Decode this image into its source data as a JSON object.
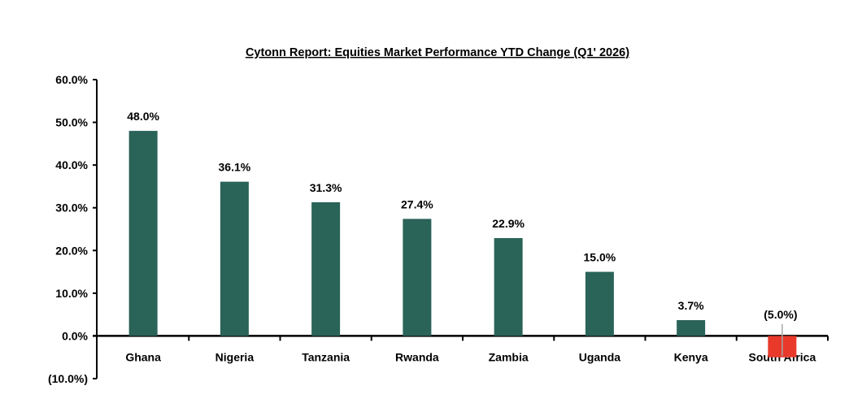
{
  "chart_data": {
    "type": "bar",
    "title": "Cytonn Report: Equities Market Performance YTD Change (Q1' 2026)",
    "xlabel": "",
    "ylabel": "",
    "categories": [
      "Ghana",
      "Nigeria",
      "Tanzania",
      "Rwanda",
      "Zambia",
      "Uganda",
      "Kenya",
      "South Africa"
    ],
    "values": [
      48.0,
      36.1,
      31.3,
      27.4,
      22.9,
      15.0,
      3.7,
      -5.0
    ],
    "data_labels": [
      "48.0%",
      "36.1%",
      "31.3%",
      "27.4%",
      "22.9%",
      "15.0%",
      "3.7%",
      "(5.0%)"
    ],
    "ylim": [
      -10,
      60
    ],
    "yticks": [
      60,
      50,
      40,
      30,
      20,
      10,
      0,
      -10
    ],
    "ytick_labels": [
      "60.0%",
      "50.0%",
      "40.0%",
      "30.0%",
      "20.0%",
      "10.0%",
      "0.0%",
      "(10.0%)"
    ],
    "grid": false,
    "legend": "none",
    "colors": {
      "positive": "#2a6358",
      "negative": "#e8392b",
      "axis": "#000000",
      "leader": "#a6a6a6"
    }
  }
}
